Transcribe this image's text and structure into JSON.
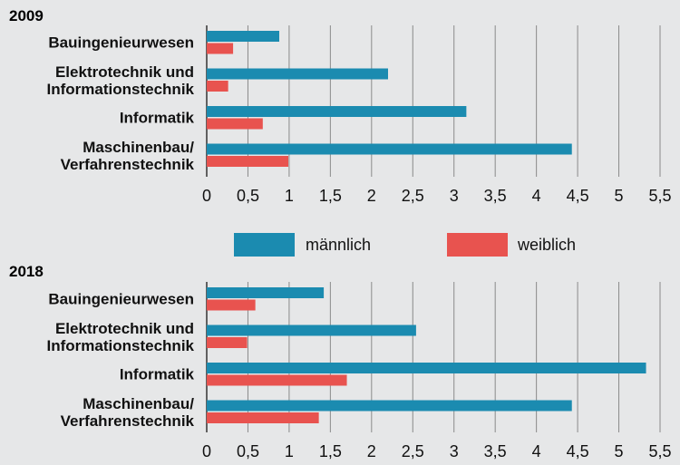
{
  "chart_data": {
    "type": "bar",
    "orientation": "horizontal",
    "categories": [
      "Bauingenieurwesen",
      "Elektrotechnik und\nInformationstechnik",
      "Informatik",
      "Maschinenbau/\nVerfahrenstechnik"
    ],
    "series": [
      {
        "name": "männlich",
        "color": "#1b8bb0"
      },
      {
        "name": "weiblich",
        "color": "#e8534f"
      }
    ],
    "xlim": [
      0,
      5.5
    ],
    "xticks": [
      0,
      {
        "value": 0.5,
        "label": "0,5"
      },
      1,
      {
        "value": 1.5,
        "label": "1,5"
      },
      2,
      {
        "value": 2.5,
        "label": "2,5"
      },
      3,
      {
        "value": 3.5,
        "label": "3,5"
      },
      4,
      {
        "value": 4.5,
        "label": "4,5"
      },
      5,
      {
        "value": 5.5,
        "label": "5,5"
      }
    ],
    "grid": true,
    "legend": "between",
    "panels": [
      {
        "title": "2009",
        "series": [
          {
            "values": [
              0.88,
              2.2,
              3.15,
              4.43
            ]
          },
          {
            "values": [
              0.32,
              0.26,
              0.68,
              0.99
            ]
          }
        ]
      },
      {
        "title": "2018",
        "series": [
          {
            "values": [
              1.42,
              2.54,
              5.33,
              4.43
            ]
          },
          {
            "values": [
              0.59,
              0.49,
              1.7,
              1.36
            ]
          }
        ]
      }
    ]
  }
}
